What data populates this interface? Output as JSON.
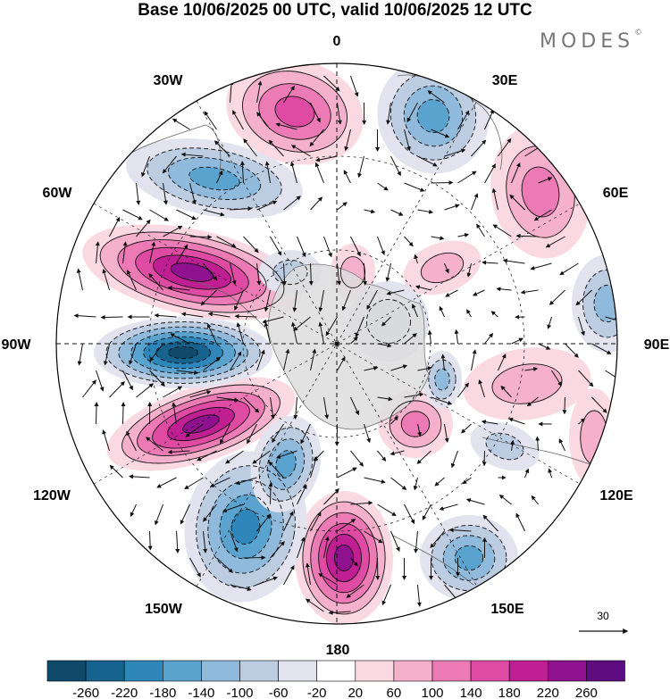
{
  "header": {
    "title": "Base 10/06/2025 00 UTC, valid 10/06/2025 12 UTC",
    "brand": "MODES",
    "brand_mark": "©"
  },
  "map": {
    "projection": "polar-stereographic-south",
    "longitude_labels": [
      "0",
      "30E",
      "60E",
      "90E",
      "120E",
      "150E",
      "180",
      "150W",
      "120W",
      "90W",
      "60W",
      "30W"
    ]
  },
  "vector_reference": {
    "value": "30"
  },
  "colorbar": {
    "tick_labels": [
      "-260",
      "-220",
      "-180",
      "-140",
      "-100",
      "-60",
      "-20",
      "20",
      "60",
      "100",
      "140",
      "180",
      "220",
      "260"
    ],
    "colors": [
      "#0f4a6b",
      "#17638f",
      "#2e86bb",
      "#5aa3cf",
      "#8fbadc",
      "#bccde2",
      "#e2e3ef",
      "#ffffff",
      "#fad9e2",
      "#f5b0cc",
      "#ec7ab4",
      "#df4aa3",
      "#c01e93",
      "#8f1190",
      "#5d0d80"
    ]
  }
}
